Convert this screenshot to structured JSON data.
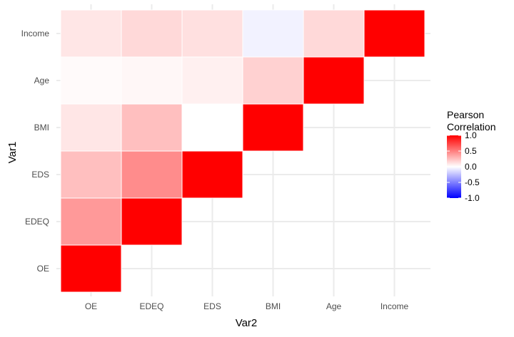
{
  "chart_data": {
    "type": "heatmap",
    "title": "",
    "xlabel": "Var2",
    "ylabel": "Var1",
    "x_categories": [
      "OE",
      "EDEQ",
      "EDS",
      "BMI",
      "Age",
      "Income"
    ],
    "y_categories": [
      "OE",
      "EDEQ",
      "EDS",
      "BMI",
      "Age",
      "Income"
    ],
    "cells": [
      {
        "x": "OE",
        "y": "OE",
        "value": 1.0
      },
      {
        "x": "OE",
        "y": "EDEQ",
        "value": 0.4
      },
      {
        "x": "EDEQ",
        "y": "EDEQ",
        "value": 1.0
      },
      {
        "x": "OE",
        "y": "EDS",
        "value": 0.25
      },
      {
        "x": "EDEQ",
        "y": "EDS",
        "value": 0.45
      },
      {
        "x": "EDS",
        "y": "EDS",
        "value": 1.0
      },
      {
        "x": "OE",
        "y": "BMI",
        "value": 0.1
      },
      {
        "x": "EDEQ",
        "y": "BMI",
        "value": 0.25
      },
      {
        "x": "EDS",
        "y": "BMI",
        "value": 0.0
      },
      {
        "x": "BMI",
        "y": "BMI",
        "value": 1.0
      },
      {
        "x": "OE",
        "y": "Age",
        "value": 0.02
      },
      {
        "x": "EDEQ",
        "y": "Age",
        "value": 0.03
      },
      {
        "x": "EDS",
        "y": "Age",
        "value": 0.06
      },
      {
        "x": "BMI",
        "y": "Age",
        "value": 0.18
      },
      {
        "x": "Age",
        "y": "Age",
        "value": 1.0
      },
      {
        "x": "OE",
        "y": "Income",
        "value": 0.1
      },
      {
        "x": "EDEQ",
        "y": "Income",
        "value": 0.15
      },
      {
        "x": "EDS",
        "y": "Income",
        "value": 0.12
      },
      {
        "x": "BMI",
        "y": "Income",
        "value": -0.05
      },
      {
        "x": "Age",
        "y": "Income",
        "value": 0.15
      },
      {
        "x": "Income",
        "y": "Income",
        "value": 1.0
      }
    ],
    "scale": {
      "min": -1.0,
      "max": 1.0,
      "low_color": "#0000ff",
      "mid_color": "#ffffff",
      "high_color": "#ff0000"
    },
    "legend": {
      "title_line1": "Pearson",
      "title_line2": "Correlation",
      "ticks": [
        "1.0",
        "0.5",
        "0.0",
        "-0.5",
        "-1.0"
      ],
      "tick_values": [
        1.0,
        0.5,
        0.0,
        -0.5,
        -1.0
      ],
      "position": "right"
    },
    "grid": true
  }
}
